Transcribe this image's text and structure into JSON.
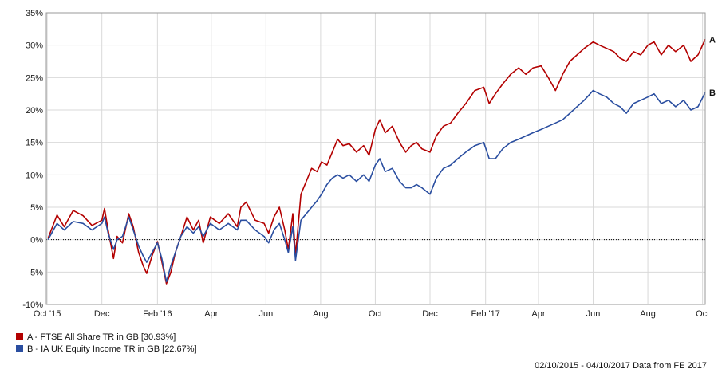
{
  "chart_data": {
    "type": "line",
    "title": "",
    "xlabel": "",
    "ylabel": "",
    "ylim": [
      -10,
      35
    ],
    "y_ticks": [
      -10,
      -5,
      0,
      5,
      10,
      15,
      20,
      25,
      30,
      35
    ],
    "y_tick_labels": [
      "-10%",
      "-5%",
      "0%",
      "5%",
      "10%",
      "15%",
      "20%",
      "25%",
      "30%",
      "35%"
    ],
    "x_range": [
      "2015-10-02",
      "2017-10-04"
    ],
    "x_ticks": [
      "2015-10-01",
      "2015-12-01",
      "2016-02-01",
      "2016-04-01",
      "2016-06-01",
      "2016-08-01",
      "2016-10-01",
      "2016-12-01",
      "2017-02-01",
      "2017-04-01",
      "2017-06-01",
      "2017-08-01",
      "2017-10-01"
    ],
    "x_tick_labels": [
      "Oct '15",
      "Dec",
      "Feb '16",
      "Apr",
      "Jun",
      "Aug",
      "Oct",
      "Dec",
      "Feb '17",
      "Apr",
      "Jun",
      "Aug",
      "Oct"
    ],
    "grid": true,
    "zero_line": "dotted",
    "series": [
      {
        "name": "A - FTSE All Share TR in GB [30.93%]",
        "end_label": "A",
        "color": "#b30000",
        "points": [
          [
            "2015-10-02",
            0.2
          ],
          [
            "2015-10-12",
            3.8
          ],
          [
            "2015-10-20",
            2.0
          ],
          [
            "2015-10-30",
            4.5
          ],
          [
            "2015-11-10",
            3.7
          ],
          [
            "2015-11-20",
            2.2
          ],
          [
            "2015-12-01",
            3.0
          ],
          [
            "2015-12-04",
            4.8
          ],
          [
            "2015-12-08",
            1.5
          ],
          [
            "2015-12-14",
            -2.9
          ],
          [
            "2015-12-18",
            0.5
          ],
          [
            "2015-12-24",
            -0.5
          ],
          [
            "2015-12-31",
            4.0
          ],
          [
            "2016-01-05",
            2.0
          ],
          [
            "2016-01-11",
            -2.0
          ],
          [
            "2016-01-16",
            -4.0
          ],
          [
            "2016-01-20",
            -5.2
          ],
          [
            "2016-01-26",
            -2.5
          ],
          [
            "2016-02-01",
            -0.3
          ],
          [
            "2016-02-06",
            -3.5
          ],
          [
            "2016-02-11",
            -6.8
          ],
          [
            "2016-02-16",
            -5.0
          ],
          [
            "2016-02-21",
            -2.0
          ],
          [
            "2016-02-27",
            0.5
          ],
          [
            "2016-03-05",
            3.5
          ],
          [
            "2016-03-12",
            1.5
          ],
          [
            "2016-03-18",
            3.0
          ],
          [
            "2016-03-23",
            -0.5
          ],
          [
            "2016-03-31",
            3.5
          ],
          [
            "2016-04-10",
            2.5
          ],
          [
            "2016-04-20",
            4.0
          ],
          [
            "2016-04-30",
            2.0
          ],
          [
            "2016-05-04",
            5.0
          ],
          [
            "2016-05-10",
            5.8
          ],
          [
            "2016-05-20",
            3.0
          ],
          [
            "2016-05-30",
            2.5
          ],
          [
            "2016-06-04",
            1.0
          ],
          [
            "2016-06-10",
            3.5
          ],
          [
            "2016-06-16",
            5.0
          ],
          [
            "2016-06-22",
            1.5
          ],
          [
            "2016-06-26",
            -1.5
          ],
          [
            "2016-07-01",
            4.0
          ],
          [
            "2016-07-04",
            -2.5
          ],
          [
            "2016-07-10",
            7.0
          ],
          [
            "2016-07-16",
            9.0
          ],
          [
            "2016-07-22",
            11.0
          ],
          [
            "2016-07-28",
            10.5
          ],
          [
            "2016-08-02",
            12.0
          ],
          [
            "2016-08-08",
            11.5
          ],
          [
            "2016-08-14",
            13.5
          ],
          [
            "2016-08-20",
            15.5
          ],
          [
            "2016-08-26",
            14.5
          ],
          [
            "2016-09-02",
            14.8
          ],
          [
            "2016-09-10",
            13.5
          ],
          [
            "2016-09-18",
            14.5
          ],
          [
            "2016-09-24",
            13.0
          ],
          [
            "2016-10-01",
            17.0
          ],
          [
            "2016-10-06",
            18.5
          ],
          [
            "2016-10-12",
            16.5
          ],
          [
            "2016-10-20",
            17.5
          ],
          [
            "2016-10-28",
            15.0
          ],
          [
            "2016-11-04",
            13.5
          ],
          [
            "2016-11-10",
            14.5
          ],
          [
            "2016-11-16",
            15.0
          ],
          [
            "2016-11-22",
            14.0
          ],
          [
            "2016-12-01",
            13.5
          ],
          [
            "2016-12-08",
            16.0
          ],
          [
            "2016-12-16",
            17.5
          ],
          [
            "2016-12-24",
            18.0
          ],
          [
            "2017-01-01",
            19.5
          ],
          [
            "2017-01-10",
            21.0
          ],
          [
            "2017-01-20",
            23.0
          ],
          [
            "2017-01-30",
            23.5
          ],
          [
            "2017-02-05",
            21.0
          ],
          [
            "2017-02-12",
            22.5
          ],
          [
            "2017-02-20",
            24.0
          ],
          [
            "2017-03-01",
            25.5
          ],
          [
            "2017-03-10",
            26.5
          ],
          [
            "2017-03-18",
            25.5
          ],
          [
            "2017-03-26",
            26.5
          ],
          [
            "2017-04-04",
            26.8
          ],
          [
            "2017-04-12",
            25.0
          ],
          [
            "2017-04-20",
            23.0
          ],
          [
            "2017-04-28",
            25.5
          ],
          [
            "2017-05-06",
            27.5
          ],
          [
            "2017-05-14",
            28.5
          ],
          [
            "2017-05-22",
            29.5
          ],
          [
            "2017-06-01",
            30.5
          ],
          [
            "2017-06-08",
            30.0
          ],
          [
            "2017-06-16",
            29.5
          ],
          [
            "2017-06-24",
            29.0
          ],
          [
            "2017-07-01",
            28.0
          ],
          [
            "2017-07-08",
            27.5
          ],
          [
            "2017-07-16",
            29.0
          ],
          [
            "2017-07-24",
            28.5
          ],
          [
            "2017-08-01",
            30.0
          ],
          [
            "2017-08-08",
            30.5
          ],
          [
            "2017-08-16",
            28.5
          ],
          [
            "2017-08-24",
            30.0
          ],
          [
            "2017-09-01",
            29.0
          ],
          [
            "2017-09-10",
            30.0
          ],
          [
            "2017-09-18",
            27.5
          ],
          [
            "2017-09-26",
            28.5
          ],
          [
            "2017-10-04",
            30.9
          ]
        ]
      },
      {
        "name": "B - IA UK Equity Income TR in GB [22.67%]",
        "end_label": "B",
        "color": "#2a4ea0",
        "points": [
          [
            "2015-10-02",
            0.0
          ],
          [
            "2015-10-12",
            2.5
          ],
          [
            "2015-10-20",
            1.5
          ],
          [
            "2015-10-30",
            2.8
          ],
          [
            "2015-11-10",
            2.5
          ],
          [
            "2015-11-20",
            1.5
          ],
          [
            "2015-12-01",
            2.5
          ],
          [
            "2015-12-04",
            3.5
          ],
          [
            "2015-12-08",
            1.0
          ],
          [
            "2015-12-14",
            -1.5
          ],
          [
            "2015-12-18",
            0.0
          ],
          [
            "2015-12-24",
            0.5
          ],
          [
            "2015-12-31",
            3.5
          ],
          [
            "2016-01-05",
            1.5
          ],
          [
            "2016-01-11",
            -1.0
          ],
          [
            "2016-01-16",
            -2.5
          ],
          [
            "2016-01-20",
            -3.5
          ],
          [
            "2016-01-26",
            -2.0
          ],
          [
            "2016-02-01",
            -0.5
          ],
          [
            "2016-02-06",
            -3.0
          ],
          [
            "2016-02-11",
            -6.5
          ],
          [
            "2016-02-16",
            -4.0
          ],
          [
            "2016-02-21",
            -2.0
          ],
          [
            "2016-02-27",
            0.5
          ],
          [
            "2016-03-05",
            2.0
          ],
          [
            "2016-03-12",
            1.0
          ],
          [
            "2016-03-18",
            2.0
          ],
          [
            "2016-03-23",
            0.5
          ],
          [
            "2016-03-31",
            2.5
          ],
          [
            "2016-04-10",
            1.5
          ],
          [
            "2016-04-20",
            2.5
          ],
          [
            "2016-04-30",
            1.5
          ],
          [
            "2016-05-04",
            3.0
          ],
          [
            "2016-05-10",
            3.0
          ],
          [
            "2016-05-20",
            1.5
          ],
          [
            "2016-05-30",
            0.5
          ],
          [
            "2016-06-04",
            -0.5
          ],
          [
            "2016-06-10",
            1.5
          ],
          [
            "2016-06-16",
            2.5
          ],
          [
            "2016-06-22",
            0.0
          ],
          [
            "2016-06-26",
            -2.0
          ],
          [
            "2016-07-01",
            2.0
          ],
          [
            "2016-07-04",
            -3.2
          ],
          [
            "2016-07-10",
            3.0
          ],
          [
            "2016-07-16",
            4.0
          ],
          [
            "2016-07-22",
            5.0
          ],
          [
            "2016-07-28",
            6.0
          ],
          [
            "2016-08-02",
            7.0
          ],
          [
            "2016-08-08",
            8.5
          ],
          [
            "2016-08-14",
            9.5
          ],
          [
            "2016-08-20",
            10.0
          ],
          [
            "2016-08-26",
            9.5
          ],
          [
            "2016-09-02",
            10.0
          ],
          [
            "2016-09-10",
            9.0
          ],
          [
            "2016-09-18",
            10.0
          ],
          [
            "2016-09-24",
            9.0
          ],
          [
            "2016-10-01",
            11.5
          ],
          [
            "2016-10-06",
            12.5
          ],
          [
            "2016-10-12",
            10.5
          ],
          [
            "2016-10-20",
            11.0
          ],
          [
            "2016-10-28",
            9.0
          ],
          [
            "2016-11-04",
            8.0
          ],
          [
            "2016-11-10",
            8.0
          ],
          [
            "2016-11-16",
            8.5
          ],
          [
            "2016-11-22",
            8.0
          ],
          [
            "2016-12-01",
            7.0
          ],
          [
            "2016-12-08",
            9.5
          ],
          [
            "2016-12-16",
            11.0
          ],
          [
            "2016-12-24",
            11.5
          ],
          [
            "2017-01-01",
            12.5
          ],
          [
            "2017-01-10",
            13.5
          ],
          [
            "2017-01-20",
            14.5
          ],
          [
            "2017-01-30",
            15.0
          ],
          [
            "2017-02-05",
            12.5
          ],
          [
            "2017-02-12",
            12.5
          ],
          [
            "2017-02-20",
            14.0
          ],
          [
            "2017-03-01",
            15.0
          ],
          [
            "2017-03-10",
            15.5
          ],
          [
            "2017-03-18",
            16.0
          ],
          [
            "2017-03-26",
            16.5
          ],
          [
            "2017-04-04",
            17.0
          ],
          [
            "2017-04-12",
            17.5
          ],
          [
            "2017-04-20",
            18.0
          ],
          [
            "2017-04-28",
            18.5
          ],
          [
            "2017-05-06",
            19.5
          ],
          [
            "2017-05-14",
            20.5
          ],
          [
            "2017-05-22",
            21.5
          ],
          [
            "2017-06-01",
            23.0
          ],
          [
            "2017-06-08",
            22.5
          ],
          [
            "2017-06-16",
            22.0
          ],
          [
            "2017-06-24",
            21.0
          ],
          [
            "2017-07-01",
            20.5
          ],
          [
            "2017-07-08",
            19.5
          ],
          [
            "2017-07-16",
            21.0
          ],
          [
            "2017-07-24",
            21.5
          ],
          [
            "2017-08-01",
            22.0
          ],
          [
            "2017-08-08",
            22.5
          ],
          [
            "2017-08-16",
            21.0
          ],
          [
            "2017-08-24",
            21.5
          ],
          [
            "2017-09-01",
            20.5
          ],
          [
            "2017-09-10",
            21.5
          ],
          [
            "2017-09-18",
            20.0
          ],
          [
            "2017-09-26",
            20.5
          ],
          [
            "2017-10-04",
            22.7
          ]
        ]
      }
    ]
  },
  "legend": {
    "items": [
      {
        "label": "A - FTSE All Share TR in GB [30.93%]",
        "color": "#b30000"
      },
      {
        "label": "B - IA UK Equity Income TR in GB [22.67%]",
        "color": "#2a4ea0"
      }
    ]
  },
  "footer": {
    "text": "02/10/2015 - 04/10/2017 Data from FE 2017"
  }
}
